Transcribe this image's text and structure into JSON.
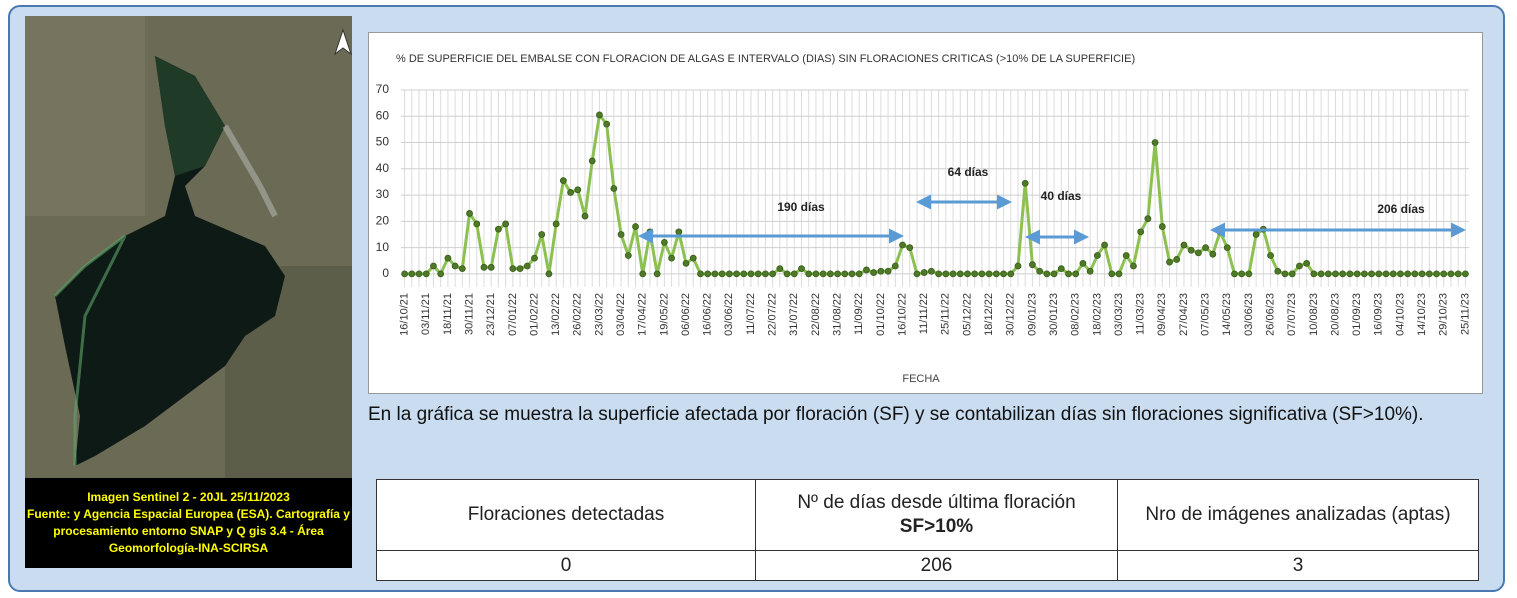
{
  "chart_data": {
    "type": "line",
    "title": "% DE SUPERFICIE DEL EMBALSE CON FLORACION DE ALGAS E INTERVALO (DIAS) SIN FLORACIONES CRITICAS (>10% DE LA SUPERFICIE)",
    "x_label": "FECHA",
    "categories": [
      "16/10/21",
      null,
      null,
      "03/11/21",
      null,
      null,
      "18/11/21",
      null,
      null,
      "30/11/21",
      null,
      null,
      "23/12/21",
      null,
      null,
      "07/01/22",
      null,
      null,
      "01/02/22",
      null,
      null,
      "13/02/22",
      null,
      null,
      "26/02/22",
      null,
      null,
      "23/03/22",
      null,
      null,
      "03/04/22",
      null,
      null,
      "17/04/22",
      null,
      null,
      "19/05/22",
      null,
      null,
      "06/06/22",
      null,
      null,
      "16/06/22",
      null,
      null,
      "03/06/22",
      null,
      null,
      "11/07/22",
      null,
      null,
      "22/07/22",
      null,
      null,
      "31/07/22",
      null,
      null,
      "22/08/22",
      null,
      null,
      "31/08/22",
      null,
      null,
      "11/09/22",
      null,
      null,
      "01/10/22",
      null,
      null,
      "16/10/22",
      null,
      null,
      "11/11/22",
      null,
      null,
      "25/11/22",
      null,
      null,
      "05/12/22",
      null,
      null,
      "18/12/22",
      null,
      null,
      "30/12/22",
      null,
      null,
      "09/01/23",
      null,
      null,
      "30/01/23",
      null,
      null,
      "08/02/23",
      null,
      null,
      "18/02/23",
      null,
      null,
      "03/03/23",
      null,
      null,
      "11/03/23",
      null,
      null,
      "09/04/23",
      null,
      null,
      "27/04/23",
      null,
      null,
      "07/05/23",
      null,
      null,
      "14/05/23",
      null,
      null,
      "03/06/23",
      null,
      null,
      "26/06/23",
      null,
      null,
      "07/07/23",
      null,
      null,
      "10/08/23",
      null,
      null,
      "20/08/23",
      null,
      null,
      "01/09/23",
      null,
      null,
      "16/09/23",
      null,
      null,
      "04/10/23",
      null,
      null,
      "14/10/23",
      null,
      null,
      "29/10/23",
      null,
      null,
      "25/11/23"
    ],
    "values": [
      0,
      0,
      0,
      0,
      3,
      0,
      6,
      3,
      2,
      23,
      19,
      2.5,
      2.5,
      17,
      19,
      2,
      2,
      3,
      6,
      15,
      0,
      19,
      35.5,
      31,
      32,
      22,
      43,
      60.5,
      57,
      32.5,
      15,
      7,
      18,
      0,
      16,
      0,
      12,
      6,
      16,
      4,
      6,
      0,
      0,
      0,
      0,
      0,
      0,
      0,
      0,
      0,
      0,
      0,
      2,
      0,
      0,
      2,
      0,
      0,
      0,
      0,
      0,
      0,
      0,
      0,
      1.5,
      0.5,
      1,
      1,
      3,
      11,
      10,
      0,
      0.5,
      1,
      0,
      0,
      0,
      0,
      0,
      0,
      0,
      0,
      0,
      0,
      0,
      3,
      34.5,
      3.5,
      1,
      0,
      0,
      2,
      0,
      0,
      4,
      1,
      7,
      11,
      0,
      0,
      7,
      3,
      16,
      21,
      50,
      18,
      4.5,
      5.5,
      11,
      9,
      8,
      10,
      7.5,
      16,
      10,
      0,
      0,
      0,
      15,
      17,
      7,
      1,
      0,
      0,
      3,
      4,
      0,
      0,
      0,
      0,
      0,
      0,
      0,
      0,
      0,
      0,
      0,
      0,
      0,
      0,
      0,
      0,
      0,
      0,
      0,
      0,
      0,
      0
    ],
    "color": "#8cc152",
    "marker_color": "#4e7a27",
    "ylim": [
      -5,
      70
    ],
    "yticks": [
      0,
      10,
      20,
      30,
      40,
      50,
      60,
      70
    ],
    "grid": true,
    "annotations": [
      "190 días",
      "64 días",
      "40 días",
      "206 días"
    ]
  },
  "image": {
    "caption": [
      "Imagen Sentinel 2 - 20JL 25/11/2023",
      "Fuente: y Agencia Espacial Europea (ESA). Cartografía y",
      "procesamiento entorno SNAP y Q gis 3.4 - Área",
      "Geomorfología-INA-SCIRSA"
    ]
  },
  "text": "En la gráfica se muestra la superficie afectada por floración (SF) y se contabilizan días sin floraciones significativa (SF>10%).",
  "table": {
    "header": [
      "Floraciones detectadas",
      [
        "Nº de días desde última floración",
        "SF>10%"
      ],
      "Nro de imágenes analizadas (aptas)"
    ],
    "rows": [
      [
        0,
        206,
        3
      ]
    ]
  }
}
